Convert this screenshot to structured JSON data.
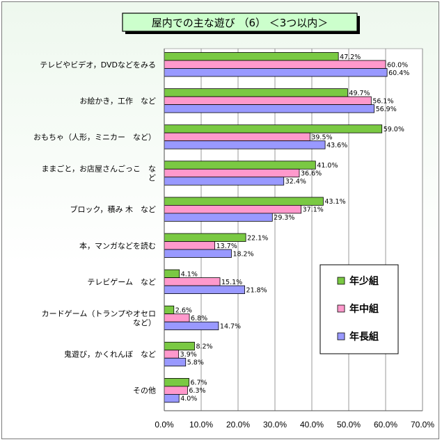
{
  "chart_data": {
    "type": "bar",
    "orientation": "horizontal",
    "title": "屋内での主な遊び （6） ＜3つ以内＞",
    "categories": [
      [
        "テレビやビデオ，DVDなどをみる"
      ],
      [
        "お絵かき，工作　など"
      ],
      [
        "おもちゃ（人形，ミニカー　など）"
      ],
      [
        "ままごと，お店屋さんごっこ　な",
        "ど"
      ],
      [
        "ブロック，積み 木　など"
      ],
      [
        "本，マンガなどを読む"
      ],
      [
        "テレビゲーム　など"
      ],
      [
        "カードゲーム（トランプやオセロ",
        "など）"
      ],
      [
        "鬼遊び，かくれんぼ　など"
      ],
      [
        "その他"
      ]
    ],
    "series": [
      {
        "name": "年少組",
        "color": "#7ac943",
        "values": [
          47.2,
          49.7,
          59.0,
          41.0,
          43.1,
          22.1,
          4.1,
          2.6,
          8.2,
          6.7
        ]
      },
      {
        "name": "年中組",
        "color": "#ff99cc",
        "values": [
          60.0,
          56.1,
          39.5,
          36.6,
          37.1,
          13.7,
          15.1,
          6.8,
          3.9,
          6.3
        ]
      },
      {
        "name": "年長組",
        "color": "#9999ff",
        "values": [
          60.4,
          56.9,
          43.6,
          32.4,
          29.3,
          18.2,
          21.8,
          14.7,
          5.8,
          4.0
        ]
      }
    ],
    "xlim": [
      0,
      70
    ],
    "xticks": [
      "0.0%",
      "10.0%",
      "20.0%",
      "30.0%",
      "40.0%",
      "50.0%",
      "60.0%",
      "70.0%"
    ],
    "value_suffix": "%",
    "grid": true,
    "legend_position": "bottom-right"
  }
}
